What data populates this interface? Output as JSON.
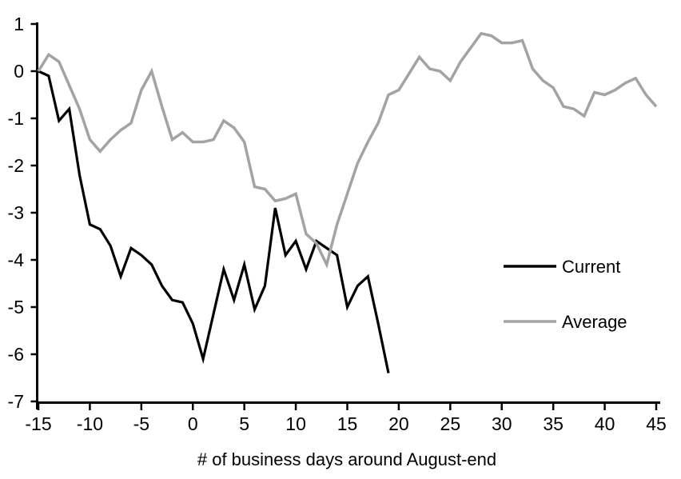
{
  "chart_data": {
    "type": "line",
    "title": "",
    "xlabel": "# of business days around August-end",
    "ylabel": "",
    "xlim": [
      -15,
      45
    ],
    "ylim": [
      -7,
      1
    ],
    "x_ticks": [
      -15,
      -10,
      -5,
      0,
      5,
      10,
      15,
      20,
      25,
      30,
      35,
      40,
      45
    ],
    "y_ticks": [
      1,
      0,
      -1,
      -2,
      -3,
      -4,
      -5,
      -6,
      -7
    ],
    "grid": false,
    "legend_position": "right-center",
    "axis_color": "#000000",
    "series": [
      {
        "name": "Current",
        "color": "#000000",
        "line_width": 3.2,
        "x": [
          -15,
          -14,
          -13,
          -12,
          -11,
          -10,
          -9,
          -8,
          -7,
          -6,
          -5,
          -4,
          -3,
          -2,
          -1,
          0,
          1,
          2,
          3,
          4,
          5,
          6,
          7,
          8,
          9,
          10,
          11,
          12,
          13,
          14,
          15,
          16,
          17,
          18,
          19
        ],
        "values": [
          0,
          -0.1,
          -1.05,
          -0.8,
          -2.2,
          -3.25,
          -3.35,
          -3.7,
          -4.35,
          -3.75,
          -3.9,
          -4.1,
          -4.55,
          -4.85,
          -4.9,
          -5.35,
          -6.1,
          -5.15,
          -4.2,
          -4.85,
          -4.1,
          -5.05,
          -4.55,
          -2.9,
          -3.9,
          -3.6,
          -4.2,
          -3.6,
          -3.75,
          -3.9,
          -5.0,
          -4.55,
          -4.35,
          -5.35,
          -6.4
        ]
      },
      {
        "name": "Average",
        "color": "#a3a3a3",
        "line_width": 3.5,
        "x": [
          -15,
          -14,
          -13,
          -12,
          -11,
          -10,
          -9,
          -8,
          -7,
          -6,
          -5,
          -4,
          -3,
          -2,
          -1,
          0,
          1,
          2,
          3,
          4,
          5,
          6,
          7,
          8,
          9,
          10,
          11,
          12,
          13,
          14,
          15,
          16,
          17,
          18,
          19,
          20,
          21,
          22,
          23,
          24,
          25,
          26,
          27,
          28,
          29,
          30,
          31,
          32,
          33,
          34,
          35,
          36,
          37,
          38,
          39,
          40,
          41,
          42,
          43,
          44,
          45
        ],
        "values": [
          0,
          0.35,
          0.2,
          -0.3,
          -0.8,
          -1.45,
          -1.7,
          -1.45,
          -1.25,
          -1.1,
          -0.4,
          0,
          -0.75,
          -1.45,
          -1.3,
          -1.5,
          -1.5,
          -1.45,
          -1.05,
          -1.2,
          -1.5,
          -2.45,
          -2.5,
          -2.75,
          -2.7,
          -2.6,
          -3.45,
          -3.65,
          -4.1,
          -3.25,
          -2.6,
          -1.95,
          -1.5,
          -1.1,
          -0.5,
          -0.4,
          -0.05,
          0.3,
          0.05,
          0,
          -0.2,
          0.2,
          0.5,
          0.8,
          0.75,
          0.6,
          0.6,
          0.65,
          0.05,
          -0.2,
          -0.35,
          -0.75,
          -0.8,
          -0.95,
          -0.45,
          -0.5,
          -0.4,
          -0.25,
          -0.15,
          -0.5,
          -0.75
        ]
      }
    ]
  }
}
